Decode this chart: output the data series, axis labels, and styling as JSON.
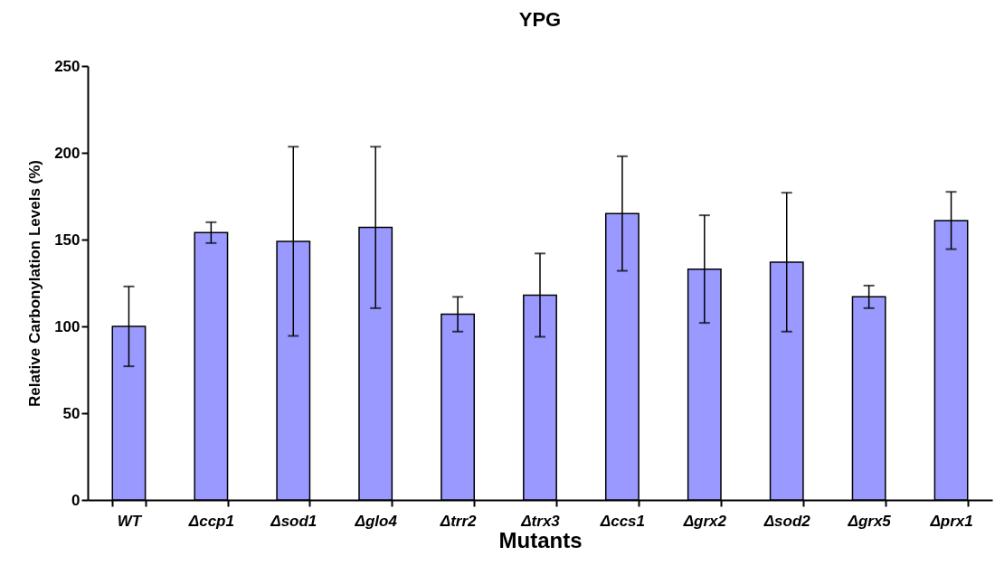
{
  "chart_data": {
    "type": "bar",
    "title": "YPG",
    "xlabel": "Mutants",
    "ylabel": "Relative Carbonylation Levels (%)",
    "categories": [
      "WT",
      "Δccp1",
      "Δsod1",
      "Δglo4",
      "Δtrr2",
      "Δtrx3",
      "Δccs1",
      "Δgrx2",
      "Δsod2",
      "Δgrx5",
      "Δprx1"
    ],
    "values": [
      100,
      154,
      149,
      157,
      107,
      118,
      165,
      133,
      137,
      117,
      161
    ],
    "errors": [
      23,
      6,
      54.5,
      46.5,
      10,
      24,
      33,
      31,
      40,
      6.5,
      16.5
    ],
    "color": "#9999ff",
    "ylim": [
      0,
      250
    ],
    "yticks": [
      0,
      50,
      100,
      150,
      200,
      250
    ],
    "grid": false
  }
}
